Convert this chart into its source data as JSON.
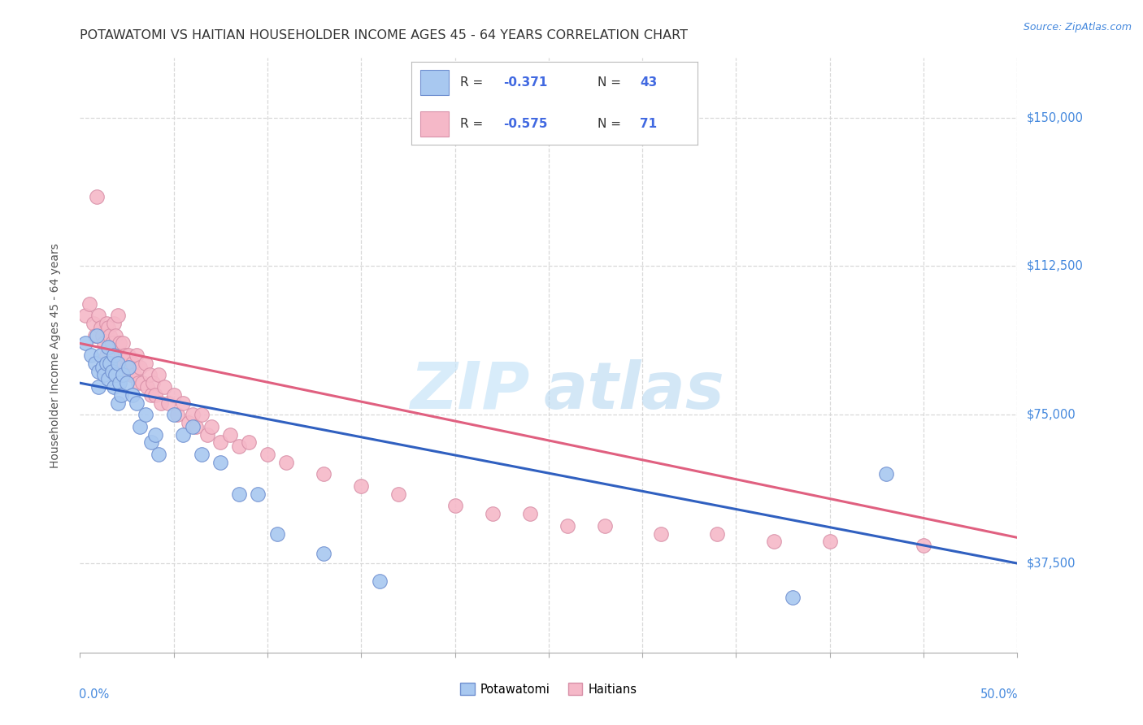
{
  "title": "POTAWATOMI VS HAITIAN HOUSEHOLDER INCOME AGES 45 - 64 YEARS CORRELATION CHART",
  "source": "Source: ZipAtlas.com",
  "ylabel": "Householder Income Ages 45 - 64 years",
  "yticks": [
    37500,
    75000,
    112500,
    150000
  ],
  "ytick_labels": [
    "$37,500",
    "$75,000",
    "$112,500",
    "$150,000"
  ],
  "xmin": 0.0,
  "xmax": 0.5,
  "ymin": 15000,
  "ymax": 165000,
  "potawatomi_color": "#a8c8f0",
  "haitian_color": "#f5b8c8",
  "potawatomi_line_color": "#3060c0",
  "haitian_line_color": "#e06080",
  "pot_r": "-0.371",
  "pot_n": "43",
  "hai_r": "-0.575",
  "hai_n": "71",
  "watermark_zip": "ZIP",
  "watermark_atlas": "atlas",
  "legend_label_1": "Potawatomi",
  "legend_label_2": "Haitians",
  "background_color": "#ffffff",
  "grid_color": "#d8d8d8",
  "title_fontsize": 11.5,
  "axis_label_fontsize": 10,
  "tick_fontsize": 10.5,
  "potawatomi_x": [
    0.003,
    0.006,
    0.008,
    0.009,
    0.01,
    0.01,
    0.011,
    0.012,
    0.013,
    0.014,
    0.015,
    0.015,
    0.016,
    0.017,
    0.018,
    0.018,
    0.019,
    0.02,
    0.02,
    0.021,
    0.022,
    0.023,
    0.025,
    0.026,
    0.028,
    0.03,
    0.032,
    0.035,
    0.038,
    0.04,
    0.042,
    0.05,
    0.055,
    0.06,
    0.065,
    0.075,
    0.085,
    0.095,
    0.105,
    0.13,
    0.16,
    0.38,
    0.43
  ],
  "potawatomi_y": [
    93000,
    90000,
    88000,
    95000,
    86000,
    82000,
    90000,
    87000,
    85000,
    88000,
    92000,
    84000,
    88000,
    86000,
    82000,
    90000,
    85000,
    88000,
    78000,
    83000,
    80000,
    85000,
    83000,
    87000,
    80000,
    78000,
    72000,
    75000,
    68000,
    70000,
    65000,
    75000,
    70000,
    72000,
    65000,
    63000,
    55000,
    55000,
    45000,
    40000,
    33000,
    29000,
    60000
  ],
  "haitian_x": [
    0.003,
    0.005,
    0.007,
    0.008,
    0.009,
    0.01,
    0.011,
    0.012,
    0.013,
    0.014,
    0.014,
    0.015,
    0.016,
    0.017,
    0.018,
    0.018,
    0.019,
    0.02,
    0.02,
    0.021,
    0.022,
    0.022,
    0.023,
    0.024,
    0.025,
    0.026,
    0.027,
    0.028,
    0.029,
    0.03,
    0.031,
    0.032,
    0.033,
    0.035,
    0.036,
    0.037,
    0.038,
    0.039,
    0.04,
    0.042,
    0.043,
    0.045,
    0.047,
    0.05,
    0.052,
    0.055,
    0.058,
    0.06,
    0.062,
    0.065,
    0.068,
    0.07,
    0.075,
    0.08,
    0.085,
    0.09,
    0.1,
    0.11,
    0.13,
    0.15,
    0.17,
    0.2,
    0.22,
    0.24,
    0.26,
    0.28,
    0.31,
    0.34,
    0.37,
    0.4,
    0.45
  ],
  "haitian_y": [
    100000,
    103000,
    98000,
    95000,
    130000,
    100000,
    97000,
    95000,
    93000,
    98000,
    90000,
    97000,
    95000,
    93000,
    98000,
    90000,
    95000,
    100000,
    88000,
    93000,
    90000,
    88000,
    93000,
    90000,
    87000,
    90000,
    85000,
    88000,
    85000,
    90000,
    83000,
    87000,
    83000,
    88000,
    82000,
    85000,
    80000,
    83000,
    80000,
    85000,
    78000,
    82000,
    78000,
    80000,
    75000,
    78000,
    73000,
    75000,
    72000,
    75000,
    70000,
    72000,
    68000,
    70000,
    67000,
    68000,
    65000,
    63000,
    60000,
    57000,
    55000,
    52000,
    50000,
    50000,
    47000,
    47000,
    45000,
    45000,
    43000,
    43000,
    42000
  ]
}
